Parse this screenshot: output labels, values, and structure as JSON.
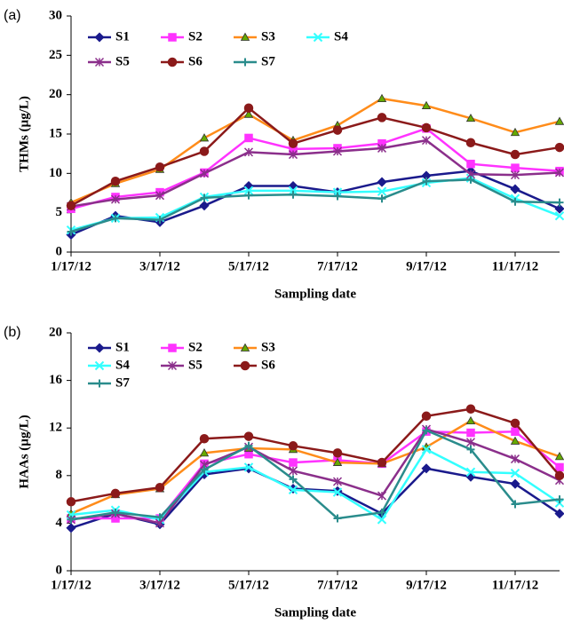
{
  "chart_data": [
    {
      "type": "line",
      "panel_label": "(a)",
      "y_label": "THMs (µg/L)",
      "x_label": "Sampling date",
      "categories": [
        "1/17/12",
        null,
        "3/17/12",
        null,
        "5/17/12",
        null,
        "7/17/12",
        null,
        "9/17/12",
        null,
        "11/17/12",
        null
      ],
      "ylim": [
        0,
        30
      ],
      "yticks": [
        0,
        5,
        10,
        15,
        20,
        25,
        30
      ],
      "series": [
        {
          "name": "S1",
          "color": "#1a1a8c",
          "marker": "diamond",
          "values": [
            2.2,
            4.6,
            3.8,
            5.9,
            8.4,
            8.4,
            7.6,
            8.9,
            9.7,
            10.3,
            8.0,
            5.5
          ]
        },
        {
          "name": "S2",
          "color": "#ff33ff",
          "marker": "square",
          "values": [
            5.5,
            7.0,
            7.6,
            10.1,
            14.5,
            13.1,
            13.2,
            13.8,
            15.7,
            11.2,
            10.7,
            10.3
          ]
        },
        {
          "name": "S3",
          "color": "#ff8c1a",
          "marker": "triangle",
          "marker_color": "#66aa00",
          "values": [
            6.3,
            8.7,
            10.5,
            14.5,
            17.5,
            14.2,
            16.1,
            19.5,
            18.6,
            17.0,
            15.2,
            16.6
          ]
        },
        {
          "name": "S4",
          "color": "#33ffff",
          "marker": "x",
          "values": [
            2.8,
            4.3,
            4.4,
            7.0,
            7.8,
            7.8,
            7.6,
            7.7,
            8.8,
            9.4,
            6.8,
            4.6
          ]
        },
        {
          "name": "S5",
          "color": "#8b2f8b",
          "marker": "asterisk",
          "values": [
            5.8,
            6.7,
            7.2,
            10.0,
            12.7,
            12.4,
            12.8,
            13.2,
            14.2,
            9.9,
            9.8,
            10.1
          ]
        },
        {
          "name": "S6",
          "color": "#8b1a1a",
          "marker": "circle",
          "values": [
            5.9,
            9.0,
            10.8,
            12.8,
            18.3,
            13.8,
            15.5,
            17.1,
            15.8,
            13.9,
            12.4,
            13.3
          ]
        },
        {
          "name": "S7",
          "color": "#2a8c8c",
          "marker": "plus",
          "values": [
            2.6,
            4.3,
            4.1,
            6.9,
            7.2,
            7.3,
            7.1,
            6.8,
            9.0,
            9.2,
            6.4,
            6.3
          ]
        }
      ]
    },
    {
      "type": "line",
      "panel_label": "(b)",
      "y_label": "HAAs (µg/L)",
      "x_label": "Sampling date",
      "categories": [
        "1/17/12",
        null,
        "3/17/12",
        null,
        "5/17/12",
        null,
        "7/17/12",
        null,
        "9/17/12",
        null,
        "11/17/12",
        null
      ],
      "ylim": [
        0,
        20
      ],
      "yticks": [
        0,
        4,
        8,
        12,
        16,
        20
      ],
      "series": [
        {
          "name": "S1",
          "color": "#1a1a8c",
          "marker": "diamond",
          "values": [
            3.6,
            4.8,
            3.9,
            8.1,
            8.6,
            6.9,
            6.7,
            4.8,
            8.6,
            7.9,
            7.3,
            4.8
          ]
        },
        {
          "name": "S2",
          "color": "#ff33ff",
          "marker": "square",
          "values": [
            4.4,
            4.4,
            4.4,
            9.0,
            9.8,
            9.1,
            9.3,
            9.0,
            11.7,
            11.6,
            11.7,
            8.7
          ]
        },
        {
          "name": "S3",
          "color": "#ff8c1a",
          "marker": "triangle",
          "marker_color": "#66aa00",
          "values": [
            4.8,
            6.4,
            6.9,
            9.9,
            10.3,
            10.2,
            9.1,
            9.0,
            10.4,
            12.6,
            10.9,
            9.6
          ]
        },
        {
          "name": "S4",
          "color": "#33ffff",
          "marker": "x",
          "values": [
            4.7,
            5.1,
            4.3,
            8.3,
            8.7,
            6.8,
            6.6,
            4.3,
            10.2,
            8.3,
            8.2,
            5.7
          ]
        },
        {
          "name": "S5",
          "color": "#8b2f8b",
          "marker": "asterisk",
          "values": [
            4.3,
            4.8,
            4.0,
            8.9,
            10.4,
            8.4,
            7.5,
            6.3,
            11.9,
            10.8,
            9.4,
            7.6
          ]
        },
        {
          "name": "S6",
          "color": "#8b1a1a",
          "marker": "circle",
          "values": [
            5.8,
            6.5,
            7.0,
            11.1,
            11.3,
            10.5,
            9.9,
            9.1,
            13.0,
            13.6,
            12.4,
            8.0
          ]
        },
        {
          "name": "S7",
          "color": "#2a8c8c",
          "marker": "plus",
          "values": [
            4.3,
            4.9,
            4.5,
            8.5,
            10.5,
            7.7,
            4.4,
            4.9,
            11.8,
            10.2,
            5.6,
            6.0
          ]
        }
      ]
    }
  ]
}
